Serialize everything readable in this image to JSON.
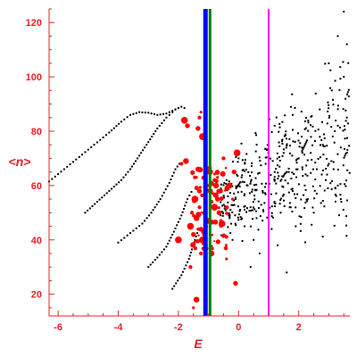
{
  "chart_data": {
    "type": "scatter",
    "title": "",
    "xlabel": "E",
    "ylabel": "<n>",
    "xlim": [
      -6.3,
      3.7
    ],
    "ylim": [
      12,
      125
    ],
    "xticks": [
      -6,
      -4,
      -2,
      0,
      2
    ],
    "yticks": [
      20,
      40,
      60,
      80,
      100,
      120
    ],
    "grid": false,
    "legend": "none",
    "colors": {
      "axis": "#e8202a",
      "black_points": "#000000",
      "red_points": "#ff0000",
      "blue_line": "#0000ff",
      "green_line": "#008000",
      "magenta_line": "#ff00ff"
    },
    "vertical_lines": [
      {
        "x": -1.1,
        "color": "#0000ff",
        "width": "thick"
      },
      {
        "x": -0.95,
        "color": "#008000",
        "width": "medium"
      },
      {
        "x": 1.0,
        "color": "#ff00ff",
        "width": "thin"
      }
    ],
    "series": [
      {
        "color": "#000000",
        "style": "dotted-curve",
        "points": [
          [
            -6.3,
            61.5
          ],
          [
            -5.8,
            66
          ],
          [
            -5.3,
            70.5
          ],
          [
            -4.8,
            75
          ],
          [
            -4.3,
            79.5
          ],
          [
            -3.9,
            83.5
          ],
          [
            -3.6,
            86
          ],
          [
            -3.3,
            87
          ],
          [
            -3.0,
            86.8
          ],
          [
            -2.7,
            86
          ],
          [
            -2.4,
            86.5
          ],
          [
            -2.2,
            87.5
          ],
          [
            -2.0,
            88.5
          ],
          [
            -1.85,
            88
          ]
        ]
      },
      {
        "color": "#000000",
        "style": "dotted-curve",
        "points": [
          [
            -5.1,
            50
          ],
          [
            -4.7,
            54
          ],
          [
            -4.3,
            58
          ],
          [
            -3.9,
            62
          ],
          [
            -3.6,
            66
          ],
          [
            -3.3,
            71
          ],
          [
            -3.0,
            76
          ],
          [
            -2.7,
            81
          ],
          [
            -2.4,
            85
          ],
          [
            -2.1,
            88
          ],
          [
            -1.9,
            89
          ],
          [
            -1.7,
            88
          ]
        ]
      },
      {
        "color": "#000000",
        "style": "dotted-curve",
        "points": [
          [
            -4.0,
            39
          ],
          [
            -3.6,
            42.5
          ],
          [
            -3.2,
            46
          ],
          [
            -2.9,
            50
          ],
          [
            -2.6,
            55
          ],
          [
            -2.3,
            61
          ],
          [
            -2.1,
            66
          ],
          [
            -1.9,
            69
          ]
        ]
      },
      {
        "color": "#000000",
        "style": "dotted-curve",
        "points": [
          [
            -3.0,
            30
          ],
          [
            -2.7,
            33.5
          ],
          [
            -2.4,
            37.5
          ],
          [
            -2.15,
            43
          ],
          [
            -1.9,
            49
          ],
          [
            -1.7,
            55
          ],
          [
            -1.5,
            59
          ]
        ]
      },
      {
        "color": "#000000",
        "style": "dotted-curve",
        "points": [
          [
            -2.2,
            22
          ],
          [
            -1.9,
            27
          ],
          [
            -1.65,
            33
          ],
          [
            -1.45,
            40
          ],
          [
            -1.3,
            45
          ]
        ]
      },
      {
        "color": "#000000",
        "style": "scatter-cloud",
        "points": [
          [
            0.2,
            45
          ],
          [
            0.4,
            52
          ],
          [
            0.6,
            48
          ],
          [
            0.8,
            58
          ],
          [
            1.0,
            55
          ],
          [
            1.2,
            62
          ],
          [
            1.4,
            50
          ],
          [
            1.6,
            65
          ],
          [
            1.8,
            58
          ],
          [
            2.0,
            70
          ],
          [
            2.2,
            60
          ],
          [
            2.4,
            72
          ],
          [
            2.6,
            66
          ],
          [
            2.8,
            75
          ],
          [
            3.0,
            68
          ],
          [
            3.2,
            80
          ],
          [
            3.4,
            74
          ],
          [
            3.6,
            85
          ],
          [
            0.5,
            40
          ],
          [
            1.1,
            44
          ],
          [
            1.7,
            52
          ],
          [
            2.3,
            55
          ],
          [
            2.9,
            62
          ],
          [
            3.3,
            60
          ],
          [
            0.3,
            60
          ],
          [
            0.9,
            68
          ],
          [
            1.5,
            72
          ],
          [
            2.1,
            78
          ],
          [
            2.7,
            88
          ],
          [
            3.1,
            95
          ],
          [
            3.5,
            100
          ],
          [
            3.6,
            112
          ],
          [
            3.5,
            124
          ],
          [
            -0.3,
            48
          ],
          [
            -0.1,
            55
          ],
          [
            0.1,
            63
          ],
          [
            0.7,
            35
          ],
          [
            1.3,
            38
          ],
          [
            1.9,
            45
          ],
          [
            2.5,
            50
          ],
          [
            3.4,
            55
          ],
          [
            -0.4,
            62
          ],
          [
            0.0,
            70
          ],
          [
            0.6,
            75
          ],
          [
            1.2,
            82
          ],
          [
            1.8,
            86
          ],
          [
            3.0,
            105
          ],
          [
            3.3,
            115
          ],
          [
            -0.2,
            40
          ],
          [
            0.4,
            30
          ],
          [
            1.6,
            28
          ]
        ]
      },
      {
        "color": "#ff0000",
        "style": "large-dots",
        "points": [
          [
            -1.25,
            87
          ],
          [
            -1.35,
            81
          ],
          [
            -1.2,
            78
          ],
          [
            -1.9,
            68
          ],
          [
            -1.75,
            69
          ],
          [
            -1.4,
            63
          ],
          [
            -1.3,
            58
          ],
          [
            -1.45,
            55
          ],
          [
            -1.3,
            52
          ],
          [
            -1.4,
            48
          ],
          [
            -1.35,
            44
          ],
          [
            -1.5,
            42
          ],
          [
            -1.2,
            40
          ],
          [
            -0.8,
            62
          ],
          [
            -0.75,
            60
          ],
          [
            -0.85,
            57
          ],
          [
            -0.7,
            55
          ],
          [
            -0.8,
            52
          ],
          [
            -0.9,
            54
          ],
          [
            -0.95,
            65
          ],
          [
            -1.0,
            60
          ],
          [
            -0.6,
            58
          ],
          [
            -1.6,
            45
          ],
          [
            -1.55,
            50
          ],
          [
            -1.0,
            47
          ],
          [
            -0.7,
            63
          ],
          [
            -0.65,
            50
          ],
          [
            -0.55,
            46
          ],
          [
            -1.25,
            35
          ],
          [
            -0.9,
            35
          ],
          [
            -0.4,
            33
          ],
          [
            -0.1,
            24
          ],
          [
            -2.0,
            40
          ],
          [
            -1.6,
            30
          ],
          [
            -1.4,
            18
          ],
          [
            -1.5,
            15
          ],
          [
            -1.7,
            82
          ],
          [
            -1.8,
            84
          ],
          [
            -1.3,
            85
          ],
          [
            -0.3,
            60
          ],
          [
            -0.2,
            55
          ],
          [
            -0.15,
            65
          ],
          [
            -0.05,
            72
          ],
          [
            -0.5,
            70
          ]
        ]
      }
    ]
  }
}
